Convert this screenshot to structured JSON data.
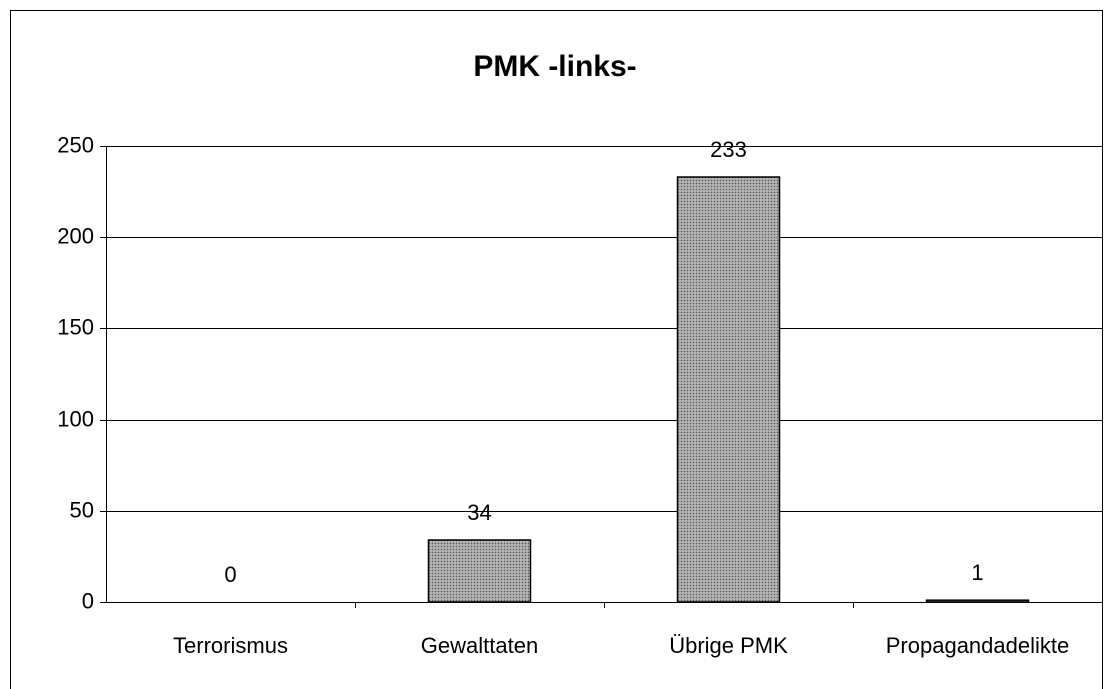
{
  "chart_data": {
    "type": "bar",
    "title": "PMK -links-",
    "categories": [
      "Terrorismus",
      "Gewalttaten",
      "Übrige PMK",
      "Propagandadelikte"
    ],
    "values": [
      0,
      34,
      233,
      1
    ],
    "color": "#a0a0a0",
    "ylim": [
      0,
      250
    ],
    "yticks": [
      0,
      50,
      100,
      150,
      200,
      250
    ],
    "grid": true
  }
}
